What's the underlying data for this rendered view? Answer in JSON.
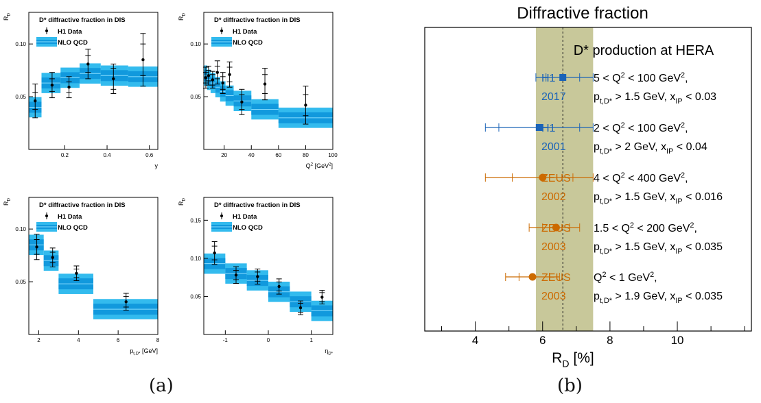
{
  "captions": {
    "a": "(a)",
    "b": "(b)"
  },
  "colors": {
    "band_outer": "#33bbee",
    "band_inner": "#1199dd",
    "band_line": "#88ddff",
    "h1": "#1a63b8",
    "zeus": "#cc6a00",
    "avg_band": "#c8c89a"
  },
  "chart_data": [
    {
      "type": "scatter",
      "title": "D* diffractive fraction in DIS",
      "ylabel": "R",
      "ylabel_sub": "D",
      "xlabel": "y",
      "legend": [
        "H1 Data",
        "NLO QCD"
      ],
      "xlim": [
        0.03,
        0.64
      ],
      "ylim": [
        0.0,
        0.13
      ],
      "xticks": [
        {
          "v": 0.2,
          "t": "0.2"
        },
        {
          "v": 0.4,
          "t": "0.4"
        },
        {
          "v": 0.6,
          "t": "0.6"
        }
      ],
      "yticks": [
        {
          "v": 0.05,
          "t": "0.05"
        },
        {
          "v": 0.1,
          "t": "0.10"
        }
      ],
      "points": [
        {
          "x": 0.06,
          "y": 0.046,
          "stat": 0.008,
          "tot": 0.016
        },
        {
          "x": 0.14,
          "y": 0.061,
          "stat": 0.006,
          "tot": 0.012
        },
        {
          "x": 0.22,
          "y": 0.059,
          "stat": 0.005,
          "tot": 0.01
        },
        {
          "x": 0.31,
          "y": 0.081,
          "stat": 0.008,
          "tot": 0.014
        },
        {
          "x": 0.43,
          "y": 0.067,
          "stat": 0.01,
          "tot": 0.014
        },
        {
          "x": 0.57,
          "y": 0.085,
          "stat": 0.015,
          "tot": 0.025
        }
      ],
      "theory": [
        {
          "x0": 0.03,
          "x1": 0.09,
          "y": 0.04
        },
        {
          "x0": 0.09,
          "x1": 0.18,
          "y": 0.063
        },
        {
          "x0": 0.18,
          "x1": 0.27,
          "y": 0.068
        },
        {
          "x0": 0.27,
          "x1": 0.37,
          "y": 0.072
        },
        {
          "x0": 0.37,
          "x1": 0.5,
          "y": 0.07
        },
        {
          "x0": 0.5,
          "x1": 0.64,
          "y": 0.069
        }
      ]
    },
    {
      "type": "scatter",
      "title": "D* diffractive fraction in DIS",
      "ylabel": "R",
      "ylabel_sub": "D",
      "xlabel": "Q",
      "xlabel_sup": "2",
      "xlabel_tail": " [GeV",
      "xlabel_tail_sup": "2",
      "xlabel_end": "]",
      "legend": [
        "H1 Data",
        "NLO QCD"
      ],
      "xlim": [
        5,
        100
      ],
      "ylim": [
        0.0,
        0.13
      ],
      "xticks": [
        {
          "v": 20,
          "t": "20"
        },
        {
          "v": 40,
          "t": "40"
        },
        {
          "v": 60,
          "t": "60"
        },
        {
          "v": 80,
          "t": "80"
        },
        {
          "v": 100,
          "t": "100"
        }
      ],
      "yticks": [
        {
          "v": 0.05,
          "t": "0.05"
        },
        {
          "v": 0.1,
          "t": "0.10"
        }
      ],
      "points": [
        {
          "x": 6.5,
          "y": 0.068,
          "stat": 0.005,
          "tot": 0.01
        },
        {
          "x": 8.5,
          "y": 0.07,
          "stat": 0.005,
          "tot": 0.009
        },
        {
          "x": 11.5,
          "y": 0.066,
          "stat": 0.005,
          "tot": 0.008
        },
        {
          "x": 15,
          "y": 0.073,
          "stat": 0.006,
          "tot": 0.011
        },
        {
          "x": 19,
          "y": 0.063,
          "stat": 0.006,
          "tot": 0.01
        },
        {
          "x": 24,
          "y": 0.071,
          "stat": 0.007,
          "tot": 0.012
        },
        {
          "x": 33,
          "y": 0.045,
          "stat": 0.007,
          "tot": 0.012
        },
        {
          "x": 50,
          "y": 0.062,
          "stat": 0.009,
          "tot": 0.015
        },
        {
          "x": 80,
          "y": 0.042,
          "stat": 0.01,
          "tot": 0.018
        }
      ],
      "theory": [
        {
          "x0": 5,
          "x1": 7.5,
          "y": 0.07
        },
        {
          "x0": 7.5,
          "x1": 10,
          "y": 0.066
        },
        {
          "x0": 10,
          "x1": 13.5,
          "y": 0.063
        },
        {
          "x0": 13.5,
          "x1": 17,
          "y": 0.059
        },
        {
          "x0": 17,
          "x1": 21,
          "y": 0.055
        },
        {
          "x0": 21,
          "x1": 27,
          "y": 0.051
        },
        {
          "x0": 27,
          "x1": 40,
          "y": 0.046
        },
        {
          "x0": 40,
          "x1": 60,
          "y": 0.038
        },
        {
          "x0": 60,
          "x1": 100,
          "y": 0.03
        }
      ]
    },
    {
      "type": "scatter",
      "title": "D* diffractive fraction in DIS",
      "ylabel": "R",
      "ylabel_sub": "D",
      "xlabel": "p",
      "xlabel_sub": "t,D*",
      "xlabel_tail": " [GeV]",
      "legend": [
        "H1 Data",
        "NLO QCD"
      ],
      "xlim": [
        1.5,
        8
      ],
      "ylim": [
        0.0,
        0.13
      ],
      "xticks": [
        {
          "v": 2,
          "t": "2"
        },
        {
          "v": 4,
          "t": "4"
        },
        {
          "v": 6,
          "t": "6"
        },
        {
          "v": 8,
          "t": "8"
        }
      ],
      "yticks": [
        {
          "v": 0.05,
          "t": "0.05"
        },
        {
          "v": 0.1,
          "t": "0.10"
        }
      ],
      "points": [
        {
          "x": 1.9,
          "y": 0.083,
          "stat": 0.007,
          "tot": 0.012
        },
        {
          "x": 2.7,
          "y": 0.073,
          "stat": 0.005,
          "tot": 0.009
        },
        {
          "x": 3.9,
          "y": 0.058,
          "stat": 0.004,
          "tot": 0.007
        },
        {
          "x": 6.4,
          "y": 0.031,
          "stat": 0.005,
          "tot": 0.008
        }
      ],
      "theory": [
        {
          "x0": 1.5,
          "x1": 2.25,
          "y": 0.085
        },
        {
          "x0": 2.25,
          "x1": 3.0,
          "y": 0.07
        },
        {
          "x0": 3.0,
          "x1": 4.75,
          "y": 0.048
        },
        {
          "x0": 4.75,
          "x1": 8.0,
          "y": 0.024
        }
      ]
    },
    {
      "type": "scatter",
      "title": "D* diffractive fraction in DIS",
      "ylabel": "R",
      "ylabel_sub": "D",
      "xlabel": "η",
      "xlabel_sub": "D*",
      "legend": [
        "H1 Data",
        "NLO QCD"
      ],
      "xlim": [
        -1.5,
        1.5
      ],
      "ylim": [
        0.0,
        0.18
      ],
      "xticks": [
        {
          "v": -1,
          "t": "-1"
        },
        {
          "v": 0,
          "t": "0"
        },
        {
          "v": 1,
          "t": "1"
        }
      ],
      "yticks": [
        {
          "v": 0.05,
          "t": "0.05"
        },
        {
          "v": 0.1,
          "t": "0.10"
        },
        {
          "v": 0.15,
          "t": "0.15"
        }
      ],
      "points": [
        {
          "x": -1.25,
          "y": 0.107,
          "stat": 0.009,
          "tot": 0.015
        },
        {
          "x": -0.75,
          "y": 0.078,
          "stat": 0.006,
          "tot": 0.011
        },
        {
          "x": -0.25,
          "y": 0.076,
          "stat": 0.006,
          "tot": 0.01
        },
        {
          "x": 0.25,
          "y": 0.063,
          "stat": 0.006,
          "tot": 0.01
        },
        {
          "x": 0.75,
          "y": 0.035,
          "stat": 0.006,
          "tot": 0.009
        },
        {
          "x": 1.25,
          "y": 0.049,
          "stat": 0.006,
          "tot": 0.009
        }
      ],
      "theory": [
        {
          "x0": -1.5,
          "x1": -1.0,
          "y": 0.093
        },
        {
          "x0": -1.0,
          "x1": -0.5,
          "y": 0.08
        },
        {
          "x0": -0.5,
          "x1": 0.0,
          "y": 0.071
        },
        {
          "x0": 0.0,
          "x1": 0.5,
          "y": 0.056
        },
        {
          "x0": 0.5,
          "x1": 1.0,
          "y": 0.043
        },
        {
          "x0": 1.0,
          "x1": 1.5,
          "y": 0.031
        }
      ]
    },
    {
      "type": "scatter",
      "title": "Diffractive fraction",
      "subtitle": "D* production at HERA",
      "xlabel": "R",
      "xlabel_sub": "D",
      "xlabel_tail": "  [%]",
      "xlim": [
        2.5,
        12.2
      ],
      "xticks": [
        {
          "v": 4,
          "t": "4"
        },
        {
          "v": 6,
          "t": "6"
        },
        {
          "v": 8,
          "t": "8"
        },
        {
          "v": 10,
          "t": "10"
        }
      ],
      "average": 6.6,
      "average_band": [
        5.8,
        7.5
      ],
      "measurements": [
        {
          "experiment": "H1",
          "year": "2017",
          "marker": "square",
          "color": "#1a63b8",
          "value": 6.6,
          "stat": [
            6.1,
            7.1
          ],
          "tot": [
            5.8,
            7.5
          ],
          "line1": [
            {
              "t": "5 < Q"
            },
            {
              "t": "2",
              "s": "sup"
            },
            {
              "t": " < 100 GeV"
            },
            {
              "t": "2",
              "s": "sup"
            },
            {
              "t": ","
            }
          ],
          "line2": [
            {
              "t": "p"
            },
            {
              "t": "t,D*",
              "s": "sub"
            },
            {
              "t": " > 1.5 GeV, x"
            },
            {
              "t": "IP",
              "s": "sub"
            },
            {
              "t": " < 0.03"
            }
          ]
        },
        {
          "experiment": "H1",
          "year": "2001",
          "marker": "square",
          "color": "#1a63b8",
          "value": 5.9,
          "stat": [
            4.7,
            7.1
          ],
          "tot": [
            4.3,
            7.5
          ],
          "line1": [
            {
              "t": "2 < Q"
            },
            {
              "t": "2",
              "s": "sup"
            },
            {
              "t": " < 100 GeV"
            },
            {
              "t": "2",
              "s": "sup"
            },
            {
              "t": ","
            }
          ],
          "line2": [
            {
              "t": "p"
            },
            {
              "t": "t,D*",
              "s": "sub"
            },
            {
              "t": " > 2 GeV, x"
            },
            {
              "t": "IP",
              "s": "sub"
            },
            {
              "t": " < 0.04"
            }
          ]
        },
        {
          "experiment": "ZEUS",
          "year": "2002",
          "marker": "circle",
          "color": "#cc6a00",
          "value": 6.0,
          "stat": [
            5.1,
            6.9
          ],
          "tot": [
            4.3,
            7.5
          ],
          "line1": [
            {
              "t": "4 < Q"
            },
            {
              "t": "2",
              "s": "sup"
            },
            {
              "t": " < 400 GeV"
            },
            {
              "t": "2",
              "s": "sup"
            },
            {
              "t": ","
            }
          ],
          "line2": [
            {
              "t": "p"
            },
            {
              "t": "t,D*",
              "s": "sub"
            },
            {
              "t": " > 1.5 GeV, x"
            },
            {
              "t": "IP",
              "s": "sub"
            },
            {
              "t": " < 0.016"
            }
          ]
        },
        {
          "experiment": "ZEUS",
          "year": "2003",
          "marker": "circle",
          "color": "#cc6a00",
          "value": 6.4,
          "stat": [
            6.0,
            6.8
          ],
          "tot": [
            5.6,
            7.1
          ],
          "line1": [
            {
              "t": "1.5  < Q"
            },
            {
              "t": "2",
              "s": "sup"
            },
            {
              "t": " < 200 GeV"
            },
            {
              "t": "2",
              "s": "sup"
            },
            {
              "t": ","
            }
          ],
          "line2": [
            {
              "t": "p"
            },
            {
              "t": "t,D*",
              "s": "sub"
            },
            {
              "t": " > 1.5 GeV, x"
            },
            {
              "t": "IP",
              "s": "sub"
            },
            {
              "t": " < 0.035"
            }
          ]
        },
        {
          "experiment": "ZEUS",
          "year": "2003",
          "marker": "circle",
          "color": "#cc6a00",
          "value": 5.7,
          "stat": [
            5.3,
            6.2
          ],
          "tot": [
            4.9,
            6.5
          ],
          "line1": [
            {
              "t": "Q"
            },
            {
              "t": "2",
              "s": "sup"
            },
            {
              "t": " < 1 GeV"
            },
            {
              "t": "2",
              "s": "sup"
            },
            {
              "t": ","
            }
          ],
          "line2": [
            {
              "t": "p"
            },
            {
              "t": "t,D*",
              "s": "sub"
            },
            {
              "t": " > 1.9 GeV, x"
            },
            {
              "t": "IP",
              "s": "sub"
            },
            {
              "t": " < 0.035"
            }
          ]
        }
      ]
    }
  ]
}
